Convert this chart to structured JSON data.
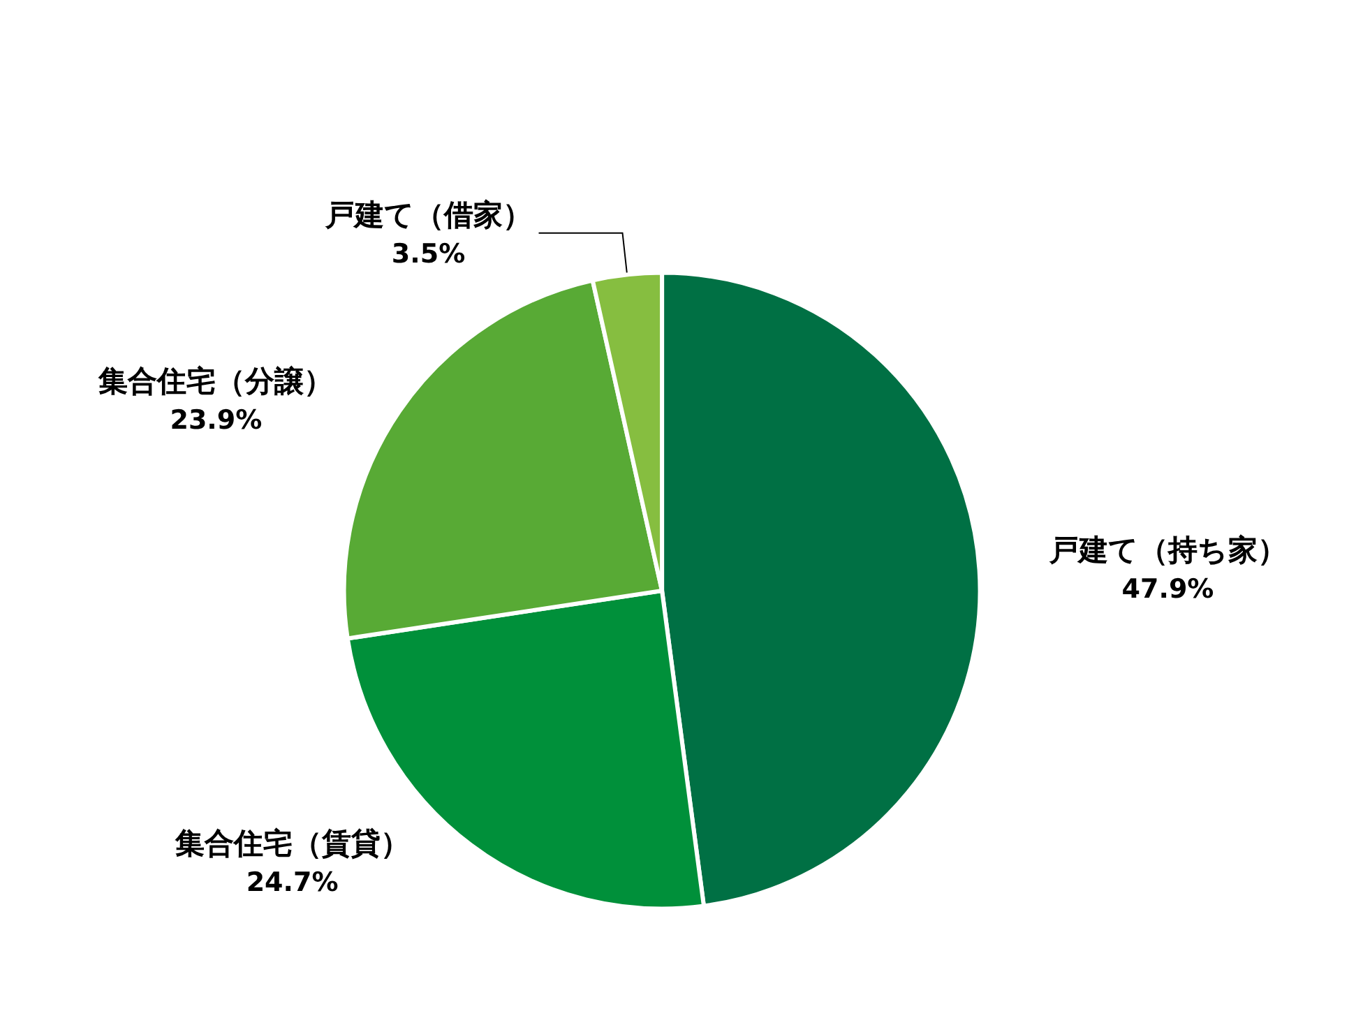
{
  "chart_data": {
    "type": "pie",
    "categories": [
      "戸建て（持ち家）",
      "集合住宅（賃貸）",
      "集合住宅（分譲）",
      "戸建て（借家）"
    ],
    "values": [
      47.9,
      24.7,
      23.9,
      3.5
    ],
    "colors": [
      "#007044",
      "#00903a",
      "#58aa35",
      "#86be40"
    ],
    "value_labels": [
      "47.9%",
      "24.7%",
      "23.9%",
      "3.5%"
    ],
    "legend": false
  }
}
